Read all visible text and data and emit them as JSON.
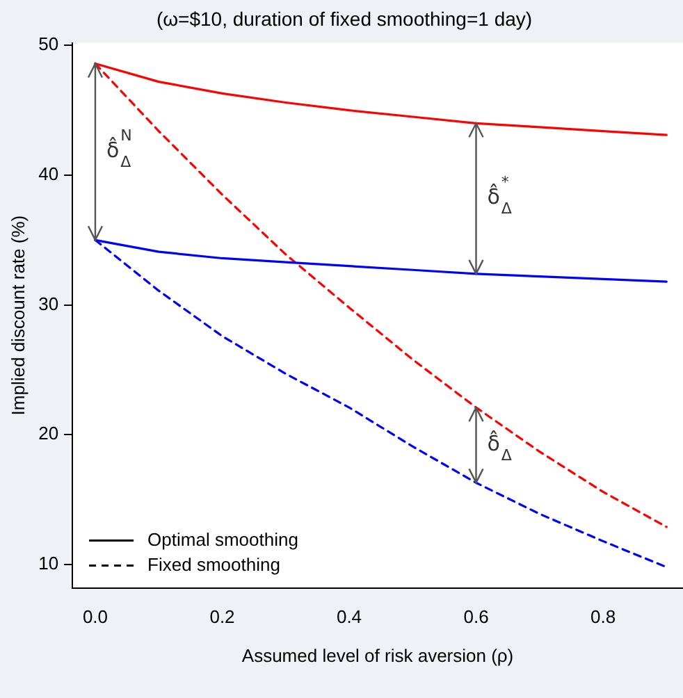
{
  "chart_data": {
    "type": "line",
    "title": "(ω=$10, duration of fixed smoothing=1 day)",
    "xlabel": "Assumed level of risk aversion (ρ)",
    "ylabel": "Implied discount rate (%)",
    "x": [
      0,
      0.1,
      0.2,
      0.3,
      0.4,
      0.5,
      0.6,
      0.7,
      0.8,
      0.9
    ],
    "series": [
      {
        "color": "#ff0000",
        "line_style": "solid",
        "values": [
          48.6,
          47.2,
          46.3,
          45.6,
          45.0,
          44.5,
          44.0,
          43.7,
          43.4,
          43.1
        ]
      },
      {
        "color": "#0000ff",
        "line_style": "solid",
        "values": [
          35.0,
          34.1,
          33.6,
          33.3,
          33.0,
          32.7,
          32.4,
          32.2,
          32.0,
          31.8
        ]
      },
      {
        "color": "#ff0000",
        "line_style": "dashed",
        "values": [
          48.6,
          43.4,
          38.5,
          33.9,
          29.8,
          25.8,
          22.1,
          18.7,
          15.6,
          12.9
        ]
      },
      {
        "color": "#0000ff",
        "line_style": "dashed",
        "values": [
          35.0,
          31.1,
          27.6,
          24.7,
          22.1,
          19.1,
          16.3,
          13.9,
          11.8,
          9.8
        ]
      }
    ],
    "xlim": [
      -0.036,
      0.926
    ],
    "ylim": [
      8.2,
      50.2
    ],
    "xticks": [
      {
        "value": 0,
        "label": "0.0"
      },
      {
        "value": 0.2,
        "label": "0.2"
      },
      {
        "value": 0.4,
        "label": "0.4"
      },
      {
        "value": 0.6,
        "label": "0.6"
      },
      {
        "value": 0.8,
        "label": "0.8"
      }
    ],
    "yticks": [
      10,
      20,
      30,
      40,
      50
    ],
    "annotations": [
      "δ̂$^{N}$$_{Δ}$",
      "δ̂$^{*}$$_{Δ}$",
      "δ̂$_{Δ}$",
      "Optimal smoothing",
      "Fixed smoothing"
    ],
    "grid": false,
    "marker": "none"
  }
}
